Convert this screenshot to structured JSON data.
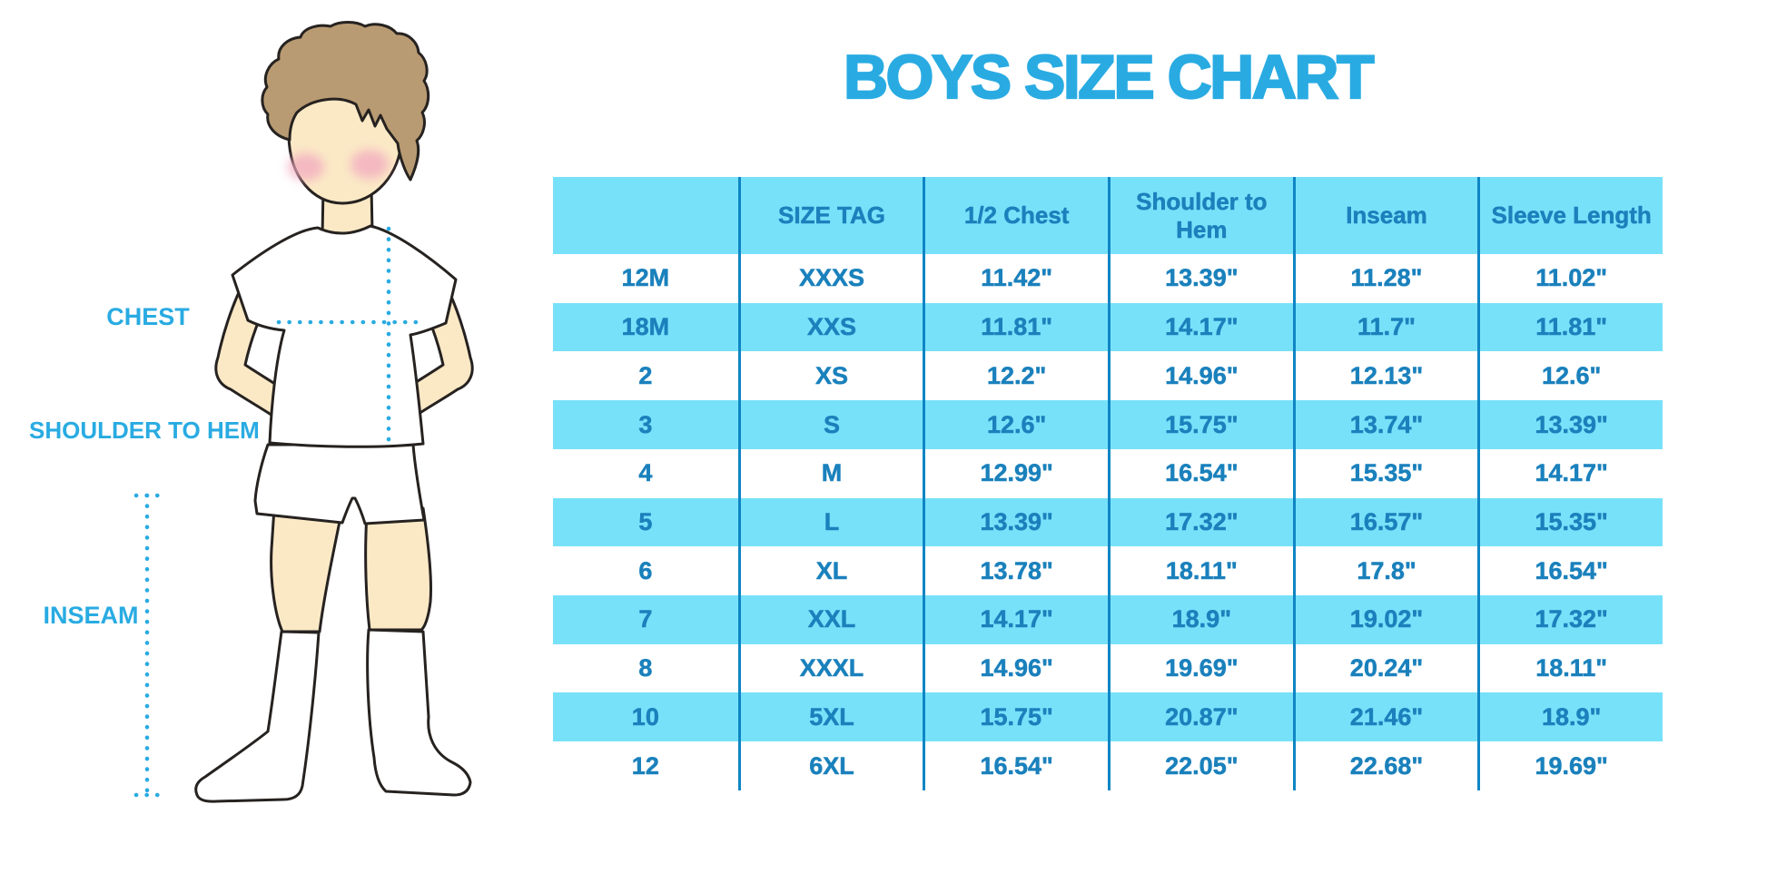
{
  "title": "BOYS SIZE CHART",
  "labels": {
    "chest": "CHEST",
    "shoulder_to_hem": "SHOULDER TO HEM",
    "inseam": "INSEAM"
  },
  "colors": {
    "accent_blue": "#29ABE2",
    "table_text": "#1A81BC",
    "band_cyan": "#78E1FA",
    "grid_line": "#0E86C4",
    "skin": "#FBE9C6",
    "hair": "#B99B73",
    "blush": "#F2A9C0",
    "outline": "#262220"
  },
  "chart_data": {
    "type": "table",
    "title": "BOYS SIZE CHART",
    "columns": [
      "",
      "SIZE TAG",
      "1/2 Chest",
      "Shoulder to Hem",
      "Inseam",
      "Sleeve Length"
    ],
    "rows": [
      [
        "12M",
        "XXXS",
        "11.42\"",
        "13.39\"",
        "11.28\"",
        "11.02\""
      ],
      [
        "18M",
        "XXS",
        "11.81\"",
        "14.17\"",
        "11.7\"",
        "11.81\""
      ],
      [
        "2",
        "XS",
        "12.2\"",
        "14.96\"",
        "12.13\"",
        "12.6\""
      ],
      [
        "3",
        "S",
        "12.6\"",
        "15.75\"",
        "13.74\"",
        "13.39\""
      ],
      [
        "4",
        "M",
        "12.99\"",
        "16.54\"",
        "15.35\"",
        "14.17\""
      ],
      [
        "5",
        "L",
        "13.39\"",
        "17.32\"",
        "16.57\"",
        "15.35\""
      ],
      [
        "6",
        "XL",
        "13.78\"",
        "18.11\"",
        "17.8\"",
        "16.54\""
      ],
      [
        "7",
        "XXL",
        "14.17\"",
        "18.9\"",
        "19.02\"",
        "17.32\""
      ],
      [
        "8",
        "XXXL",
        "14.96\"",
        "19.69\"",
        "20.24\"",
        "18.11\""
      ],
      [
        "10",
        "5XL",
        "15.75\"",
        "20.87\"",
        "21.46\"",
        "18.9\""
      ],
      [
        "12",
        "6XL",
        "16.54\"",
        "22.05\"",
        "22.68\"",
        "19.69\""
      ]
    ]
  }
}
